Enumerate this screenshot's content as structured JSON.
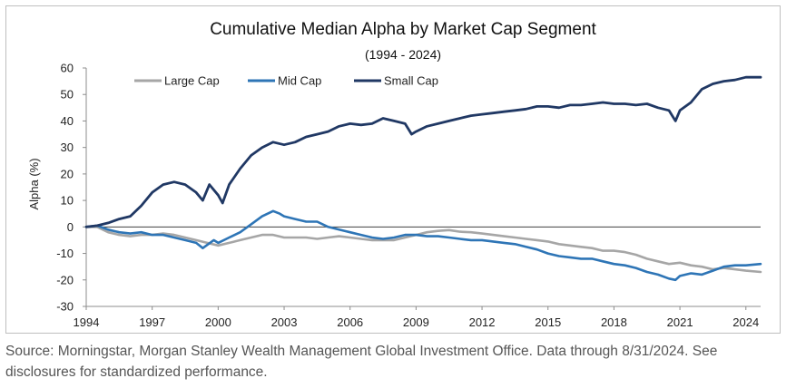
{
  "chart_data": {
    "type": "line",
    "title": "Cumulative Median Alpha by Market Cap Segment",
    "subtitle": "(1994 - 2024)",
    "xlabel": "",
    "ylabel": "Alpha (%)",
    "xlim": [
      1994,
      2024.67
    ],
    "ylim": [
      -30,
      60
    ],
    "x_ticks": [
      "1994",
      "1997",
      "2000",
      "2003",
      "2006",
      "2009",
      "2012",
      "2015",
      "2018",
      "2021",
      "2024"
    ],
    "y_ticks": [
      "60",
      "50",
      "40",
      "30",
      "20",
      "10",
      "0",
      "-10",
      "-20",
      "-30"
    ],
    "legend_position": "top-left",
    "grid": false,
    "series": [
      {
        "name": "Large Cap",
        "color": "#a6a6a6",
        "points": [
          [
            1994,
            0
          ],
          [
            1994.5,
            0
          ],
          [
            1995,
            -2
          ],
          [
            1995.5,
            -3
          ],
          [
            1996,
            -3.5
          ],
          [
            1996.5,
            -3
          ],
          [
            1997,
            -3
          ],
          [
            1997.5,
            -2.5
          ],
          [
            1998,
            -3
          ],
          [
            1998.5,
            -4
          ],
          [
            1999,
            -5
          ],
          [
            1999.5,
            -6
          ],
          [
            2000,
            -7
          ],
          [
            2000.5,
            -6
          ],
          [
            2001,
            -5
          ],
          [
            2001.5,
            -4
          ],
          [
            2002,
            -3
          ],
          [
            2002.5,
            -3
          ],
          [
            2003,
            -4
          ],
          [
            2003.5,
            -4
          ],
          [
            2004,
            -4
          ],
          [
            2004.5,
            -4.5
          ],
          [
            2005,
            -4
          ],
          [
            2005.5,
            -3.5
          ],
          [
            2006,
            -4
          ],
          [
            2006.5,
            -4.5
          ],
          [
            2007,
            -5
          ],
          [
            2007.5,
            -5
          ],
          [
            2008,
            -5
          ],
          [
            2008.5,
            -4
          ],
          [
            2009,
            -3
          ],
          [
            2009.5,
            -2
          ],
          [
            2010,
            -1.5
          ],
          [
            2010.5,
            -1.2
          ],
          [
            2011,
            -1.8
          ],
          [
            2011.5,
            -2
          ],
          [
            2012,
            -2.5
          ],
          [
            2012.5,
            -3
          ],
          [
            2013,
            -3.5
          ],
          [
            2013.5,
            -4
          ],
          [
            2014,
            -4.5
          ],
          [
            2014.5,
            -5
          ],
          [
            2015,
            -5.5
          ],
          [
            2015.5,
            -6.5
          ],
          [
            2016,
            -7
          ],
          [
            2016.5,
            -7.5
          ],
          [
            2017,
            -8
          ],
          [
            2017.5,
            -9
          ],
          [
            2018,
            -9
          ],
          [
            2018.5,
            -9.5
          ],
          [
            2019,
            -10.5
          ],
          [
            2019.5,
            -12
          ],
          [
            2020,
            -13
          ],
          [
            2020.5,
            -14
          ],
          [
            2021,
            -13.5
          ],
          [
            2021.5,
            -14.5
          ],
          [
            2022,
            -15
          ],
          [
            2022.5,
            -16
          ],
          [
            2023,
            -15.5
          ],
          [
            2023.5,
            -16
          ],
          [
            2024,
            -16.5
          ],
          [
            2024.67,
            -17
          ]
        ]
      },
      {
        "name": "Mid Cap",
        "color": "#2e75b6",
        "points": [
          [
            1994,
            0
          ],
          [
            1994.5,
            0.5
          ],
          [
            1995,
            -1
          ],
          [
            1995.5,
            -2
          ],
          [
            1996,
            -2.5
          ],
          [
            1996.5,
            -2
          ],
          [
            1997,
            -3
          ],
          [
            1997.5,
            -3
          ],
          [
            1998,
            -4
          ],
          [
            1998.5,
            -5
          ],
          [
            1999,
            -6
          ],
          [
            1999.3,
            -8
          ],
          [
            1999.8,
            -5
          ],
          [
            2000,
            -6
          ],
          [
            2000.5,
            -4
          ],
          [
            2001,
            -2
          ],
          [
            2001.5,
            1
          ],
          [
            2002,
            4
          ],
          [
            2002.5,
            6
          ],
          [
            2002.8,
            5
          ],
          [
            2003,
            4
          ],
          [
            2003.5,
            3
          ],
          [
            2004,
            2
          ],
          [
            2004.5,
            2
          ],
          [
            2005,
            0
          ],
          [
            2005.5,
            -1
          ],
          [
            2006,
            -2
          ],
          [
            2006.5,
            -3
          ],
          [
            2007,
            -4
          ],
          [
            2007.5,
            -4.5
          ],
          [
            2008,
            -4
          ],
          [
            2008.5,
            -3
          ],
          [
            2009,
            -3
          ],
          [
            2009.5,
            -3.5
          ],
          [
            2010,
            -3.5
          ],
          [
            2010.5,
            -4
          ],
          [
            2011,
            -4.5
          ],
          [
            2011.5,
            -5
          ],
          [
            2012,
            -5
          ],
          [
            2012.5,
            -5.5
          ],
          [
            2013,
            -6
          ],
          [
            2013.5,
            -6.5
          ],
          [
            2014,
            -7.5
          ],
          [
            2014.5,
            -8.5
          ],
          [
            2015,
            -10
          ],
          [
            2015.5,
            -11
          ],
          [
            2016,
            -11.5
          ],
          [
            2016.5,
            -12
          ],
          [
            2017,
            -12
          ],
          [
            2017.5,
            -13
          ],
          [
            2018,
            -14
          ],
          [
            2018.5,
            -14.5
          ],
          [
            2019,
            -15.5
          ],
          [
            2019.5,
            -17
          ],
          [
            2020,
            -18
          ],
          [
            2020.5,
            -19.5
          ],
          [
            2020.8,
            -20
          ],
          [
            2021,
            -18.5
          ],
          [
            2021.5,
            -17.5
          ],
          [
            2022,
            -18
          ],
          [
            2022.5,
            -16.5
          ],
          [
            2023,
            -15
          ],
          [
            2023.5,
            -14.5
          ],
          [
            2024,
            -14.5
          ],
          [
            2024.67,
            -14
          ]
        ]
      },
      {
        "name": "Small Cap",
        "color": "#203864",
        "points": [
          [
            1994,
            0
          ],
          [
            1994.5,
            0.5
          ],
          [
            1995,
            1.5
          ],
          [
            1995.5,
            3
          ],
          [
            1996,
            4
          ],
          [
            1996.5,
            8
          ],
          [
            1997,
            13
          ],
          [
            1997.5,
            16
          ],
          [
            1998,
            17
          ],
          [
            1998.5,
            16
          ],
          [
            1999,
            13
          ],
          [
            1999.3,
            10
          ],
          [
            1999.6,
            16
          ],
          [
            2000,
            12
          ],
          [
            2000.2,
            9
          ],
          [
            2000.5,
            16
          ],
          [
            2001,
            22
          ],
          [
            2001.5,
            27
          ],
          [
            2002,
            30
          ],
          [
            2002.5,
            32
          ],
          [
            2003,
            31
          ],
          [
            2003.5,
            32
          ],
          [
            2004,
            34
          ],
          [
            2004.5,
            35
          ],
          [
            2005,
            36
          ],
          [
            2005.5,
            38
          ],
          [
            2006,
            39
          ],
          [
            2006.5,
            38.5
          ],
          [
            2007,
            39
          ],
          [
            2007.5,
            41
          ],
          [
            2008,
            40
          ],
          [
            2008.5,
            39
          ],
          [
            2008.8,
            35
          ],
          [
            2009,
            36
          ],
          [
            2009.5,
            38
          ],
          [
            2010,
            39
          ],
          [
            2010.5,
            40
          ],
          [
            2011,
            41
          ],
          [
            2011.5,
            42
          ],
          [
            2012,
            42.5
          ],
          [
            2012.5,
            43
          ],
          [
            2013,
            43.5
          ],
          [
            2013.5,
            44
          ],
          [
            2014,
            44.5
          ],
          [
            2014.5,
            45.5
          ],
          [
            2015,
            45.5
          ],
          [
            2015.5,
            45
          ],
          [
            2016,
            46
          ],
          [
            2016.5,
            46
          ],
          [
            2017,
            46.5
          ],
          [
            2017.5,
            47
          ],
          [
            2018,
            46.5
          ],
          [
            2018.5,
            46.5
          ],
          [
            2019,
            46
          ],
          [
            2019.5,
            46.5
          ],
          [
            2020,
            45
          ],
          [
            2020.5,
            44
          ],
          [
            2020.8,
            40
          ],
          [
            2021,
            44
          ],
          [
            2021.5,
            47
          ],
          [
            2022,
            52
          ],
          [
            2022.5,
            54
          ],
          [
            2023,
            55
          ],
          [
            2023.5,
            55.5
          ],
          [
            2024,
            56.5
          ],
          [
            2024.67,
            56.5
          ]
        ]
      }
    ],
    "zero_line": 0
  },
  "source_note": "Source: Morningstar, Morgan Stanley Wealth Management Global Investment Office. Data through 8/31/2024. See disclosures for standardized performance."
}
